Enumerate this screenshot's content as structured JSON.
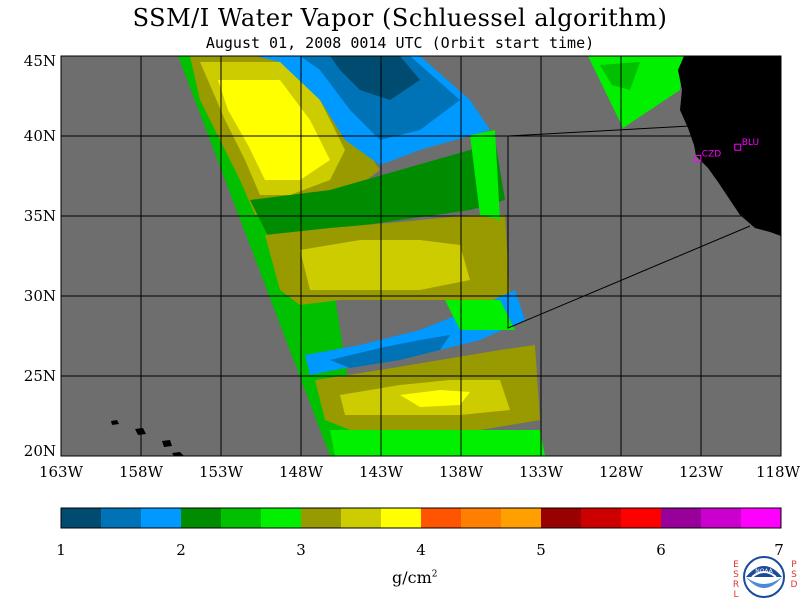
{
  "title": "SSM/I Water Vapor (Schluessel algorithm)",
  "subtitle": "August 01, 2008  0014 UTC  (Orbit start time)",
  "latitude_labels": [
    "45N",
    "40N",
    "35N",
    "30N",
    "25N",
    "20N"
  ],
  "longitude_labels": [
    "163W",
    "158W",
    "153W",
    "148W",
    "143W",
    "138W",
    "133W",
    "128W",
    "123W",
    "118W"
  ],
  "stations": [
    {
      "label": "BLU",
      "lat": 39.3,
      "lon": -120.7
    },
    {
      "label": "CZD",
      "lat": 38.6,
      "lon": -123.2
    }
  ],
  "colorbar": {
    "tick_labels": [
      "1",
      "2",
      "3",
      "4",
      "5",
      "6",
      "7"
    ],
    "unit": "g/cm",
    "unit_exponent": "2",
    "colors": [
      "#004c70",
      "#0073b7",
      "#0099ff",
      "#008c00",
      "#00c000",
      "#00f000",
      "#999900",
      "#cccc00",
      "#ffff00",
      "#ff5500",
      "#ff8000",
      "#ff9f00",
      "#990000",
      "#cc0000",
      "#ff0000",
      "#990099",
      "#cc00cc",
      "#ff00ff"
    ]
  },
  "colors": {
    "no_data": "#6e6e6e",
    "land": "#000000",
    "grid": "#000000",
    "station": "#ff00ff"
  },
  "logo": {
    "left_letters": [
      "E",
      "S",
      "R",
      "L"
    ],
    "right_letters": [
      "P",
      "S",
      "D"
    ],
    "emblem_text": "NOAA"
  }
}
